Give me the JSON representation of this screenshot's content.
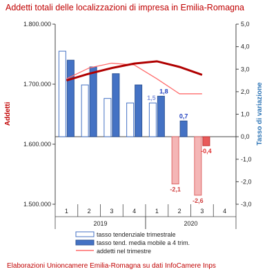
{
  "title": "Addetti totali delle localizzazioni di impresa in Emilia-Romagna",
  "footer": "Elaborazioni Unioncamere Emilia-Romagna su dati InfoCamere Inps",
  "colors": {
    "accent_red": "#c00000",
    "bar_blue": "#4472c4",
    "bar_pink": "#f4b6b6",
    "line_dark_red": "#b00000",
    "line_light_red": "#ff6b6b",
    "axis_blue": "#2e75b6",
    "label_blue": "#1f3fbf",
    "label_red": "#e03030"
  },
  "chart_data": {
    "type": "bar",
    "title": "Addetti totali delle localizzazioni di impresa in Emilia-Romagna",
    "ylabel_left": "Addetti",
    "ylabel_right": "Tasso di variazione",
    "ylim_left": [
      1500000,
      1800000
    ],
    "ylim_right": [
      -3.0,
      5.0
    ],
    "yticks_left": [
      "1.800.000",
      "1.700.000",
      "1.600.000",
      "1.500.000"
    ],
    "yticks_right": [
      "5,0",
      "4,0",
      "3,0",
      "2,0",
      "1,0",
      "0,0",
      "-1,0",
      "-2,0",
      "-3,0"
    ],
    "categories": [
      "1",
      "2",
      "3",
      "4",
      "1",
      "2",
      "3",
      "4"
    ],
    "years": [
      {
        "label": "2019",
        "span": [
          0,
          3
        ]
      },
      {
        "label": "2020",
        "span": [
          4,
          7
        ]
      }
    ],
    "series": [
      {
        "name": "tasso tendenziale trimestrale",
        "kind": "bar",
        "axis": "right",
        "values": [
          3.8,
          2.3,
          1.7,
          1.5,
          1.5,
          -2.1,
          -2.6,
          null
        ]
      },
      {
        "name": "tasso tend. media mobile a 4 trim.",
        "kind": "bar",
        "axis": "right",
        "values": [
          3.4,
          3.1,
          2.8,
          2.3,
          1.8,
          0.7,
          -0.4,
          null
        ]
      },
      {
        "name": "addetti nel trimestre",
        "kind": "line",
        "axis": "left",
        "values": [
          1709000,
          1727000,
          1735000,
          1732000,
          1709000,
          1684000,
          1684000,
          null
        ]
      },
      {
        "name": "",
        "kind": "trend",
        "axis": "right",
        "values": [
          2.5,
          2.8,
          3.05,
          3.25,
          3.35,
          3.1,
          2.75,
          null
        ]
      }
    ],
    "data_labels": [
      {
        "series": 0,
        "index": 4,
        "text": "1,5"
      },
      {
        "series": 1,
        "index": 4,
        "text": "1,8"
      },
      {
        "series": 1,
        "index": 5,
        "text": "0,7"
      },
      {
        "series": 0,
        "index": 5,
        "text": "-2,1"
      },
      {
        "series": 0,
        "index": 6,
        "text": "-2,6"
      },
      {
        "series": 1,
        "index": 6,
        "text": "-0,4"
      }
    ],
    "legend": [
      {
        "label": "tasso tendenziale trimestrale",
        "swatch": "outline-bar"
      },
      {
        "label": "tasso tend. media mobile a 4 trim.",
        "swatch": "filled-bar"
      },
      {
        "label": "addetti nel trimestre",
        "swatch": "line"
      }
    ],
    "legend_position": "bottom-center",
    "grid": false
  }
}
